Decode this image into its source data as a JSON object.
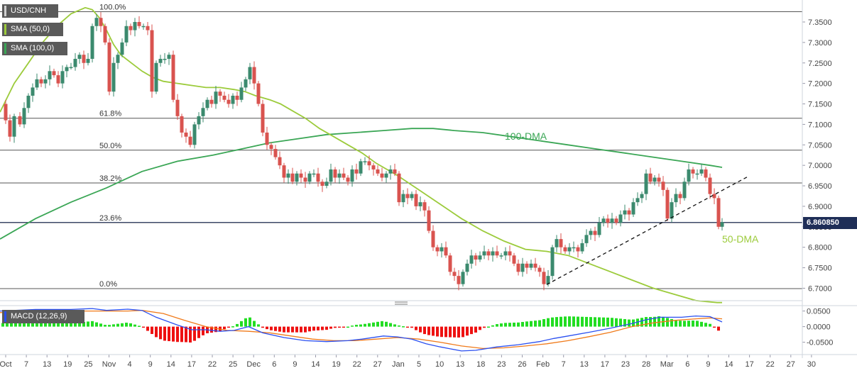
{
  "chart_data": [
    {
      "type": "candlestick",
      "symbol": "USD/CNH",
      "y_ticks": [
        "7.3500",
        "7.3000",
        "7.2500",
        "7.2000",
        "7.1500",
        "7.1000",
        "7.0500",
        "7.0000",
        "6.9500",
        "6.9000",
        "6.8500",
        "6.8000",
        "6.7500",
        "6.7000"
      ],
      "ylim": [
        6.68,
        7.395
      ],
      "x_ticks": [
        "Oct",
        "7",
        "13",
        "19",
        "25",
        "Nov",
        "4",
        "9",
        "14",
        "17",
        "22",
        "25",
        "Dec",
        "6",
        "9",
        "14",
        "19",
        "22",
        "27",
        "Jan",
        "5",
        "10",
        "13",
        "18",
        "23",
        "26",
        "Feb",
        "7",
        "13",
        "17",
        "23",
        "28",
        "Mar",
        "6",
        "9",
        "14",
        "17",
        "22",
        "27",
        "30"
      ],
      "current_price": "6.860850",
      "candle_colors": {
        "up": "#3b8a6e",
        "down": "#d9534f"
      },
      "fibonacci": [
        {
          "label": "100.0%",
          "price": 7.375
        },
        {
          "label": "61.8%",
          "price": 7.115
        },
        {
          "label": "50.0%",
          "price": 7.037
        },
        {
          "label": "38.2%",
          "price": 6.957
        },
        {
          "label": "23.6%",
          "price": 6.86
        },
        {
          "label": "0.0%",
          "price": 6.699
        }
      ],
      "current_price_value": 6.8608,
      "series": [
        {
          "name": "SMA (50,0)",
          "color": "#9ccb3b",
          "annotation": "50-DMA",
          "values": [
            [
              0,
              7.13
            ],
            [
              20,
              7.2
            ],
            [
              40,
              7.25
            ],
            [
              60,
              7.3
            ],
            [
              80,
              7.34
            ],
            [
              100,
              7.37
            ],
            [
              120,
              7.385
            ],
            [
              130,
              7.38
            ],
            [
              140,
              7.36
            ],
            [
              150,
              7.33
            ],
            [
              160,
              7.295
            ],
            [
              170,
              7.27
            ],
            [
              185,
              7.25
            ],
            [
              200,
              7.23
            ],
            [
              215,
              7.215
            ],
            [
              230,
              7.205
            ],
            [
              250,
              7.2
            ],
            [
              270,
              7.195
            ],
            [
              290,
              7.19
            ],
            [
              310,
              7.19
            ],
            [
              330,
              7.185
            ],
            [
              345,
              7.18
            ],
            [
              360,
              7.17
            ],
            [
              380,
              7.16
            ],
            [
              395,
              7.15
            ],
            [
              410,
              7.135
            ],
            [
              430,
              7.115
            ],
            [
              450,
              7.09
            ],
            [
              470,
              7.07
            ],
            [
              490,
              7.05
            ],
            [
              510,
              7.03
            ],
            [
              530,
              7.005
            ],
            [
              560,
              6.975
            ],
            [
              590,
              6.94
            ],
            [
              620,
              6.905
            ],
            [
              650,
              6.87
            ],
            [
              680,
              6.84
            ],
            [
              710,
              6.815
            ],
            [
              740,
              6.795
            ],
            [
              770,
              6.79
            ],
            [
              800,
              6.78
            ],
            [
              830,
              6.76
            ],
            [
              860,
              6.74
            ],
            [
              890,
              6.72
            ],
            [
              920,
              6.7
            ],
            [
              950,
              6.685
            ],
            [
              980,
              6.67
            ],
            [
              1010,
              6.665
            ],
            [
              1017,
              6.665
            ]
          ]
        },
        {
          "name": "SMA (100,0)",
          "color": "#3aa655",
          "annotation": "100-DMA",
          "values": [
            [
              0,
              6.82
            ],
            [
              50,
              6.87
            ],
            [
              100,
              6.91
            ],
            [
              150,
              6.945
            ],
            [
              200,
              6.985
            ],
            [
              250,
              7.01
            ],
            [
              300,
              7.025
            ],
            [
              340,
              7.04
            ],
            [
              380,
              7.055
            ],
            [
              420,
              7.065
            ],
            [
              460,
              7.075
            ],
            [
              500,
              7.08
            ],
            [
              540,
              7.085
            ],
            [
              580,
              7.09
            ],
            [
              610,
              7.09
            ],
            [
              640,
              7.085
            ],
            [
              680,
              7.08
            ],
            [
              720,
              7.07
            ],
            [
              760,
              7.06
            ],
            [
              800,
              7.05
            ],
            [
              840,
              7.04
            ],
            [
              880,
              7.03
            ],
            [
              920,
              7.02
            ],
            [
              960,
              7.01
            ],
            [
              1000,
              7.0
            ],
            [
              1017,
              6.995
            ]
          ]
        }
      ],
      "annotations": [
        {
          "label": "100-DMA",
          "color": "#3aa655"
        },
        {
          "label": "50-DMA",
          "color": "#9ccb3b"
        }
      ],
      "trendline": {
        "from": {
          "date": "Feb 1",
          "price": 6.709
        },
        "to": {
          "date": "Mar 20",
          "price": 6.974
        },
        "style": "dashed"
      }
    },
    {
      "type": "macd",
      "title": "MACD (12,26,9)",
      "y_ticks": [
        "0.0500",
        "0.0000",
        "-0.0500"
      ],
      "ylim": [
        -0.085,
        0.065
      ],
      "colors": {
        "macd_line": "#2a4ff0",
        "signal_line": "#f07a1a",
        "hist_pos": "#22dd22",
        "hist_neg": "#ee1111"
      },
      "macd_line": [
        [
          0,
          0.05
        ],
        [
          50,
          0.055
        ],
        [
          100,
          0.055
        ],
        [
          130,
          0.058
        ],
        [
          150,
          0.052
        ],
        [
          180,
          0.056
        ],
        [
          200,
          0.052
        ],
        [
          220,
          0.03
        ],
        [
          250,
          0.005
        ],
        [
          270,
          -0.01
        ],
        [
          290,
          -0.01
        ],
        [
          310,
          -0.015
        ],
        [
          330,
          -0.012
        ],
        [
          350,
          0.0
        ],
        [
          370,
          -0.02
        ],
        [
          400,
          -0.035
        ],
        [
          430,
          -0.045
        ],
        [
          460,
          -0.048
        ],
        [
          490,
          -0.045
        ],
        [
          510,
          -0.04
        ],
        [
          540,
          -0.03
        ],
        [
          560,
          -0.033
        ],
        [
          580,
          -0.04
        ],
        [
          600,
          -0.055
        ],
        [
          620,
          -0.065
        ],
        [
          650,
          -0.078
        ],
        [
          670,
          -0.076
        ],
        [
          700,
          -0.065
        ],
        [
          730,
          -0.058
        ],
        [
          760,
          -0.048
        ],
        [
          780,
          -0.038
        ],
        [
          800,
          -0.03
        ],
        [
          830,
          -0.018
        ],
        [
          860,
          -0.005
        ],
        [
          890,
          0.01
        ],
        [
          910,
          0.022
        ],
        [
          930,
          0.03
        ],
        [
          960,
          0.03
        ],
        [
          980,
          0.034
        ],
        [
          1000,
          0.032
        ],
        [
          1017,
          0.015
        ]
      ],
      "signal_line": [
        [
          0,
          0.045
        ],
        [
          100,
          0.05
        ],
        [
          180,
          0.05
        ],
        [
          200,
          0.052
        ],
        [
          230,
          0.042
        ],
        [
          260,
          0.02
        ],
        [
          290,
          0.0
        ],
        [
          320,
          -0.012
        ],
        [
          350,
          -0.015
        ],
        [
          380,
          -0.02
        ],
        [
          410,
          -0.03
        ],
        [
          440,
          -0.04
        ],
        [
          470,
          -0.045
        ],
        [
          500,
          -0.045
        ],
        [
          530,
          -0.04
        ],
        [
          560,
          -0.035
        ],
        [
          590,
          -0.04
        ],
        [
          620,
          -0.05
        ],
        [
          650,
          -0.062
        ],
        [
          680,
          -0.07
        ],
        [
          710,
          -0.068
        ],
        [
          740,
          -0.062
        ],
        [
          770,
          -0.055
        ],
        [
          800,
          -0.045
        ],
        [
          830,
          -0.032
        ],
        [
          860,
          -0.018
        ],
        [
          890,
          0.0
        ],
        [
          920,
          0.012
        ],
        [
          950,
          0.02
        ],
        [
          980,
          0.025
        ],
        [
          1000,
          0.028
        ],
        [
          1017,
          0.025
        ]
      ]
    }
  ]
}
